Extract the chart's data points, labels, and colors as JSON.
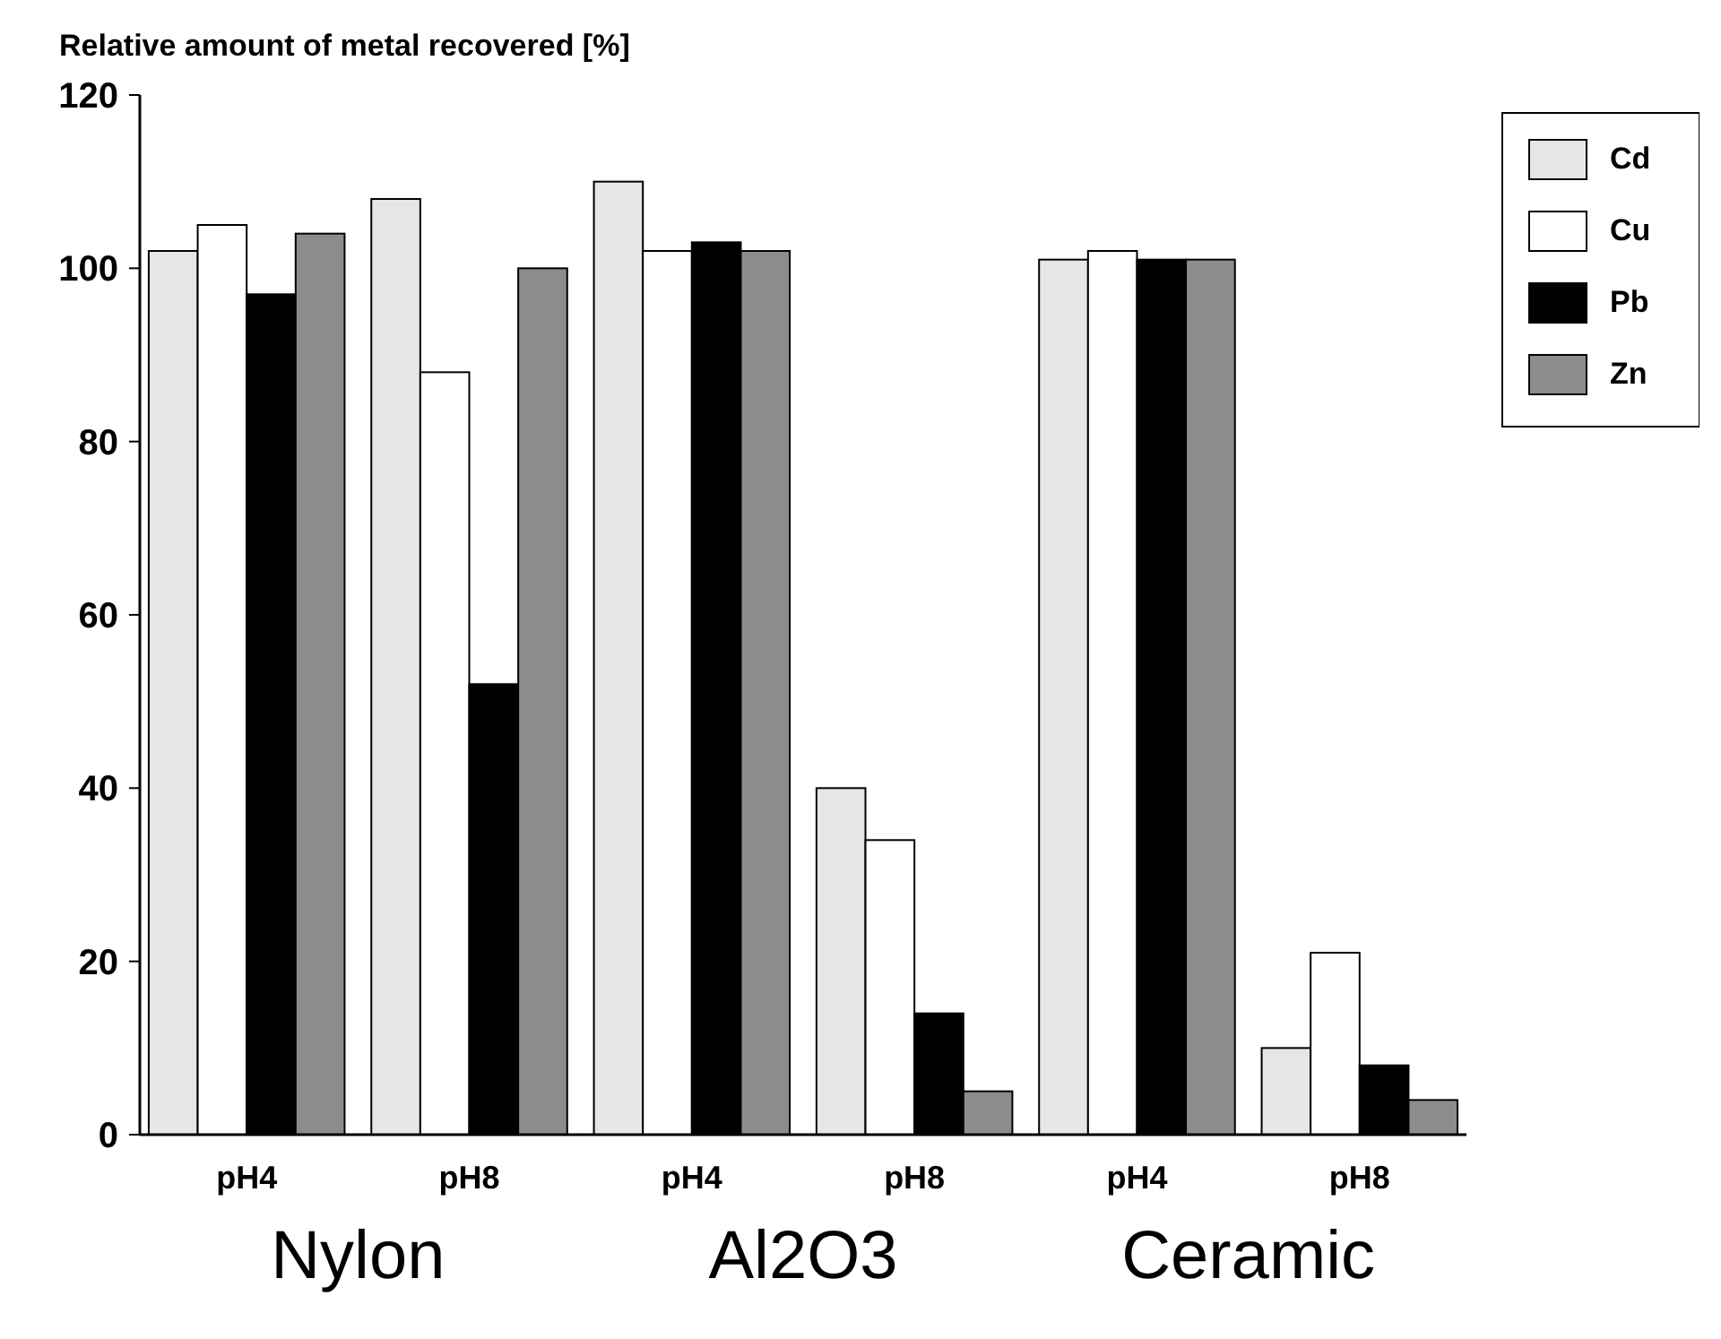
{
  "chart_data": {
    "type": "bar",
    "ylabel": "Relative amount of metal recovered [%]",
    "categories": [
      "pH4",
      "pH8",
      "pH4",
      "pH8",
      "pH4",
      "pH8"
    ],
    "series": [
      {
        "name": "Cd",
        "color": "#e6e6e6",
        "values": [
          102,
          108,
          110,
          40,
          101,
          10
        ]
      },
      {
        "name": "Cu",
        "color": "#ffffff",
        "values": [
          105,
          88,
          102,
          34,
          102,
          21
        ]
      },
      {
        "name": "Pb",
        "color": "#000000",
        "values": [
          97,
          52,
          103,
          14,
          101,
          8
        ]
      },
      {
        "name": "Zn",
        "color": "#8c8c8c",
        "values": [
          104,
          100,
          102,
          5,
          101,
          4
        ]
      }
    ],
    "annotations": [
      "Nylon",
      "Al2O3",
      "Ceramic"
    ],
    "ylim": [
      0,
      120
    ],
    "yticks": [
      0,
      20,
      40,
      60,
      80,
      100,
      120
    ],
    "grid": false,
    "legend": "right"
  }
}
